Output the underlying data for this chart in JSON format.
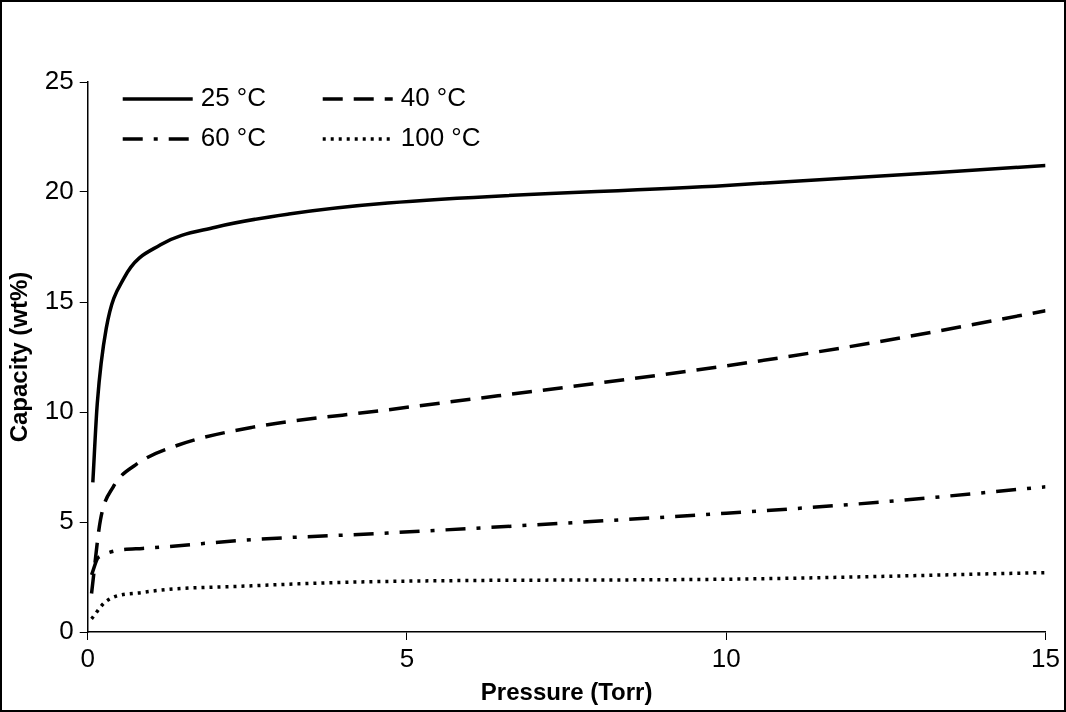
{
  "chart_data": {
    "type": "line",
    "xlabel": "Pressure (Torr)",
    "ylabel": "Capacity (wt%)",
    "xlim": [
      0,
      15
    ],
    "xticks": [
      0,
      5,
      10,
      15
    ],
    "ylim": [
      0,
      25
    ],
    "yticks": [
      0,
      5,
      10,
      15,
      20,
      25
    ],
    "grid": false,
    "legend": "top left",
    "marker": "none",
    "series": [
      {
        "name": "25 °C",
        "color": "#000000",
        "line_style": "solid",
        "x": [
          0.08,
          0.15,
          0.29,
          0.57,
          1.14,
          2.0,
          3.15,
          4.7,
          10,
          15
        ],
        "values": [
          6.8,
          10.4,
          13.8,
          16.1,
          17.6,
          18.4,
          19.0,
          19.5,
          20.3,
          21.2
        ]
      },
      {
        "name": "40 °C",
        "color": "#000000",
        "line_style": "dashed",
        "x": [
          0.06,
          0.2,
          0.4,
          0.75,
          1.42,
          2.57,
          4.7,
          10,
          12.4,
          15
        ],
        "values": [
          1.75,
          5.1,
          6.6,
          7.6,
          8.5,
          9.3,
          10.1,
          12.1,
          13.2,
          14.6
        ]
      },
      {
        "name": "60 °C",
        "color": "#000000",
        "line_style": "dashdot",
        "x": [
          0.06,
          0.17,
          0.86,
          2.57,
          4.7,
          10,
          12.4,
          15
        ],
        "values": [
          2.6,
          3.4,
          3.8,
          4.2,
          4.5,
          5.4,
          5.9,
          6.6
        ]
      },
      {
        "name": "100 °C",
        "color": "#000000",
        "line_style": "dotted",
        "x": [
          0.06,
          0.29,
          0.86,
          2.57,
          4.7,
          10,
          15
        ],
        "values": [
          0.6,
          1.4,
          1.8,
          2.1,
          2.3,
          2.4,
          2.7
        ]
      }
    ]
  }
}
